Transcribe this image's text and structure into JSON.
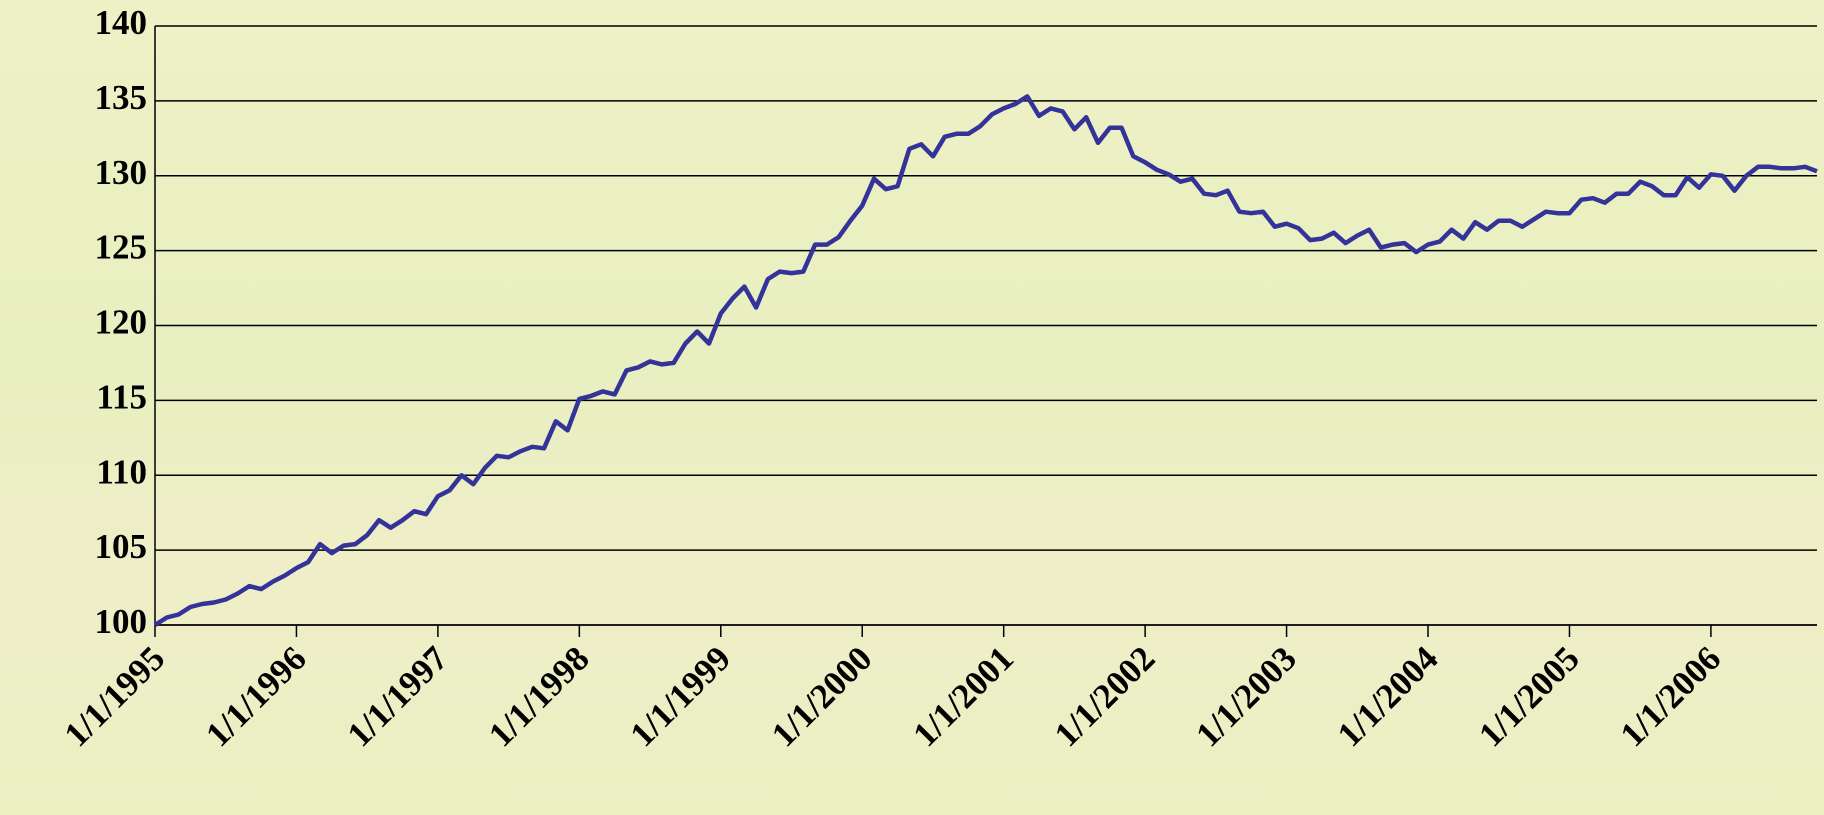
{
  "chart_data": {
    "type": "line",
    "categories": [
      "1/1/1995",
      null,
      null,
      null,
      null,
      null,
      null,
      null,
      null,
      null,
      null,
      null,
      "1/1/1996",
      null,
      null,
      null,
      null,
      null,
      null,
      null,
      null,
      null,
      null,
      null,
      "1/1/1997",
      null,
      null,
      null,
      null,
      null,
      null,
      null,
      null,
      null,
      null,
      null,
      "1/1/1998",
      null,
      null,
      null,
      null,
      null,
      null,
      null,
      null,
      null,
      null,
      null,
      "1/1/1999",
      null,
      null,
      null,
      null,
      null,
      null,
      null,
      null,
      null,
      null,
      null,
      "1/1/2000",
      null,
      null,
      null,
      null,
      null,
      null,
      null,
      null,
      null,
      null,
      null,
      "1/1/2001",
      null,
      null,
      null,
      null,
      null,
      null,
      null,
      null,
      null,
      null,
      null,
      "1/1/2002",
      null,
      null,
      null,
      null,
      null,
      null,
      null,
      null,
      null,
      null,
      null,
      "1/1/2003",
      null,
      null,
      null,
      null,
      null,
      null,
      null,
      null,
      null,
      null,
      null,
      "1/1/2004",
      null,
      null,
      null,
      null,
      null,
      null,
      null,
      null,
      null,
      null,
      null,
      "1/1/2005",
      null,
      null,
      null,
      null,
      null,
      null,
      null,
      null,
      null,
      null,
      null,
      "1/1/2006",
      null,
      null,
      null,
      null,
      null,
      null,
      null,
      null,
      null
    ],
    "values": [
      100,
      100.5,
      100.7,
      101.2,
      101.4,
      101.5,
      101.7,
      102.1,
      102.6,
      102.4,
      102.9,
      103.3,
      103.8,
      104.2,
      105.4,
      104.8,
      105.3,
      105.4,
      106.0,
      107.0,
      106.5,
      107.0,
      107.6,
      107.4,
      108.6,
      109.0,
      110.0,
      109.4,
      110.5,
      111.3,
      111.2,
      111.6,
      111.9,
      111.8,
      113.6,
      113.0,
      115.1,
      115.3,
      115.6,
      115.4,
      117.0,
      117.2,
      117.6,
      117.4,
      117.5,
      118.8,
      119.6,
      118.8,
      120.8,
      121.8,
      122.6,
      121.2,
      123.1,
      123.6,
      123.5,
      123.6,
      125.4,
      125.4,
      125.9,
      127.0,
      128.0,
      129.8,
      129.1,
      129.3,
      131.8,
      132.1,
      131.3,
      132.6,
      132.8,
      132.8,
      133.3,
      134.1,
      134.5,
      134.8,
      135.3,
      134.0,
      134.5,
      134.3,
      133.1,
      133.9,
      132.2,
      133.2,
      133.2,
      131.3,
      130.9,
      130.4,
      130.1,
      129.6,
      129.8,
      128.8,
      128.7,
      129.0,
      127.6,
      127.5,
      127.6,
      126.6,
      126.8,
      126.5,
      125.7,
      125.8,
      126.2,
      125.5,
      126.0,
      126.4,
      125.2,
      125.4,
      125.5,
      124.9,
      125.4,
      125.6,
      126.4,
      125.8,
      126.9,
      126.4,
      127.0,
      127.0,
      126.6,
      127.1,
      127.6,
      127.5,
      127.5,
      128.4,
      128.5,
      128.2,
      128.8,
      128.8,
      129.6,
      129.3,
      128.7,
      128.7,
      129.9,
      129.2,
      130.1,
      130.0,
      129.0,
      130.0,
      130.6,
      130.6,
      130.5,
      130.5,
      130.6,
      130.3
    ],
    "color": "#333399",
    "ylim": [
      100,
      140
    ],
    "yticks": [
      100,
      105,
      110,
      115,
      120,
      125,
      130,
      135,
      140
    ],
    "grid": true
  }
}
